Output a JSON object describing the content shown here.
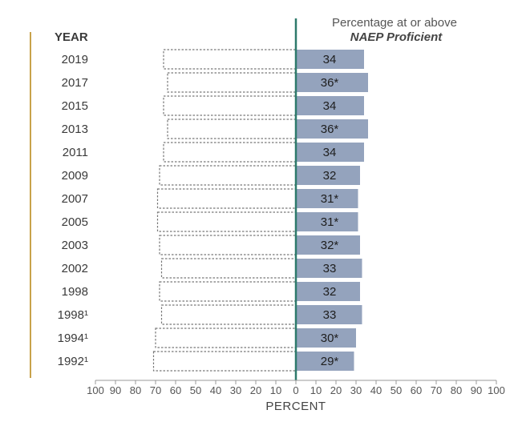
{
  "chart_data": {
    "type": "bar",
    "orientation": "horizontal-diverging",
    "header": {
      "category_column": "YEAR",
      "legend_line1": "Percentage at or above",
      "legend_line2": "NAEP Proficient"
    },
    "categories": [
      "2019",
      "2017",
      "2015",
      "2013",
      "2011",
      "2009",
      "2007",
      "2005",
      "2003",
      "2002",
      "1998",
      "1998¹",
      "1994¹",
      "1992¹"
    ],
    "series": [
      {
        "values": [
          34,
          36,
          34,
          36,
          34,
          32,
          31,
          31,
          32,
          33,
          32,
          33,
          30,
          29
        ],
        "labels": [
          "34",
          "36*",
          "34",
          "36*",
          "34",
          "32",
          "31*",
          "31*",
          "32*",
          "33",
          "32",
          "33",
          "30*",
          "29*"
        ],
        "color": "#94a3bd"
      },
      {
        "values": [
          66,
          64,
          66,
          64,
          66,
          68,
          69,
          69,
          68,
          67,
          68,
          67,
          70,
          71
        ],
        "style": "dashed-outline"
      }
    ],
    "xlabel": "PERCENT",
    "xlim": [
      -100,
      100
    ],
    "x_ticks": [
      "100",
      "90",
      "80",
      "70",
      "60",
      "50",
      "40",
      "30",
      "20",
      "10",
      "0",
      "10",
      "20",
      "30",
      "40",
      "50",
      "60",
      "70",
      "80",
      "90",
      "100"
    ],
    "colors": {
      "proficient_bar": "#94a3bd",
      "zero_line": "#2e7a6b",
      "side_rule": "#c8a24a",
      "dashed_outline": "#777777"
    }
  }
}
